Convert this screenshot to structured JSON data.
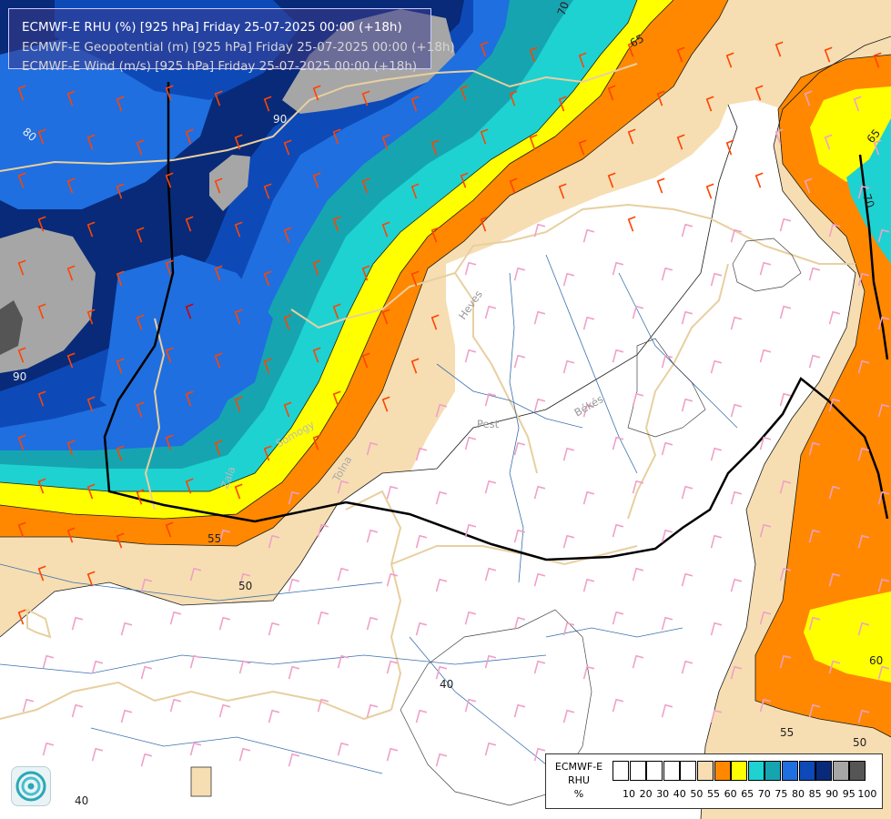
{
  "title": {
    "line1": "ECMWF-E RHU (%) [925 hPa] Friday 25-07-2025 00:00 (+18h)",
    "line2": "ECMWF-E Geopotential (m) [925 hPa] Friday 25-07-2025 00:00 (+18h)",
    "line3": "ECMWF-E Wind (m/s) [925 hPa] Friday 25-07-2025 00:00 (+18h)"
  },
  "legend": {
    "title_line1": "ECMWF-E",
    "title_line2": "RHU",
    "title_line3": "%",
    "classes": [
      {
        "label": "10",
        "color": "#ffffff"
      },
      {
        "label": "20",
        "color": "#ffffff"
      },
      {
        "label": "30",
        "color": "#ffffff"
      },
      {
        "label": "40",
        "color": "#ffffff"
      },
      {
        "label": "50",
        "color": "#ffffff"
      },
      {
        "label": "55",
        "color": "#f6deb2"
      },
      {
        "label": "60",
        "color": "#ff8800"
      },
      {
        "label": "65",
        "color": "#ffff00"
      },
      {
        "label": "70",
        "color": "#1ed2d2"
      },
      {
        "label": "75",
        "color": "#16a5b0"
      },
      {
        "label": "80",
        "color": "#1f6fe0"
      },
      {
        "label": "85",
        "color": "#0d4ab8"
      },
      {
        "label": "90",
        "color": "#082a78"
      },
      {
        "label": "95",
        "color": "#a6a6a6"
      },
      {
        "label": "100",
        "color": "#555555"
      }
    ]
  },
  "contour_labels": {
    "c65_top": "65",
    "c70_top": "70",
    "c80": "80",
    "c90_a": "90",
    "c90_b": "90",
    "c55_left": "55",
    "c50_left": "50",
    "c40_center": "40",
    "c40_bottom": "40",
    "c65_right": "65",
    "c70_right": "70",
    "c60_right": "60",
    "c55_right": "55",
    "c50_right": "50"
  },
  "place_labels": {
    "pest": "Pest",
    "bekes": "Békés",
    "heves": "Heves",
    "tolna": "Tolna",
    "somogy": "Somogy",
    "zala": "Zala"
  },
  "colors": {
    "wind_barb_on_white": "#f0a0c8",
    "wind_barb_orange": "#ff4400",
    "wind_barb_red": "#d00000",
    "border_lines": "#e8cfa0",
    "rivers": "#3a6fb0",
    "geopotential_line": "#000000"
  },
  "icons": {
    "logo": "ecmwf-swirl-logo"
  }
}
